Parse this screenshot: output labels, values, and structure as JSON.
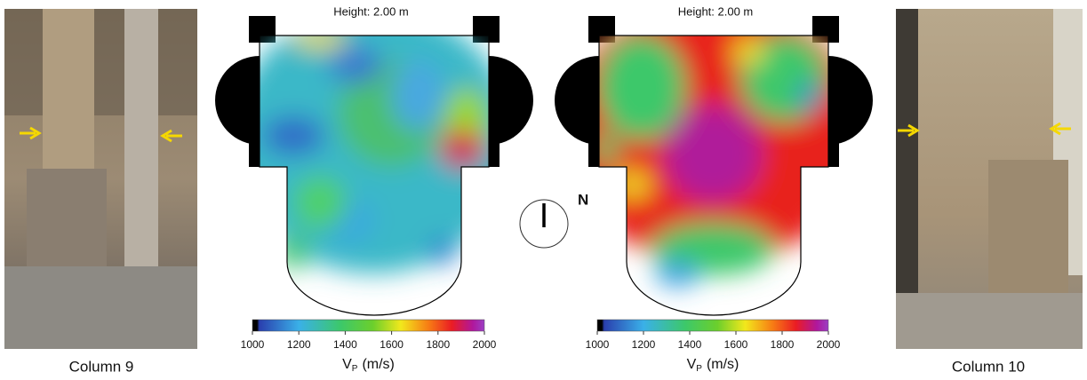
{
  "photos": [
    {
      "caption": "Column 9"
    },
    {
      "caption": "Column 10"
    }
  ],
  "maps": [
    {
      "title": "Height: 2.00 m",
      "colorbar": {
        "range": [
          1000,
          2000
        ],
        "ticks": [
          1000,
          1200,
          1400,
          1600,
          1800,
          2000
        ],
        "label": "V",
        "label_sub": "P",
        "unit": "(m/s)"
      }
    },
    {
      "title": "Height: 2.00 m",
      "colorbar": {
        "range": [
          1000,
          2000
        ],
        "ticks": [
          1000,
          1200,
          1400,
          1600,
          1800,
          2000
        ],
        "label": "V",
        "label_sub": "P",
        "unit": "(m/s)"
      }
    }
  ],
  "compass": {
    "label": "N"
  }
}
